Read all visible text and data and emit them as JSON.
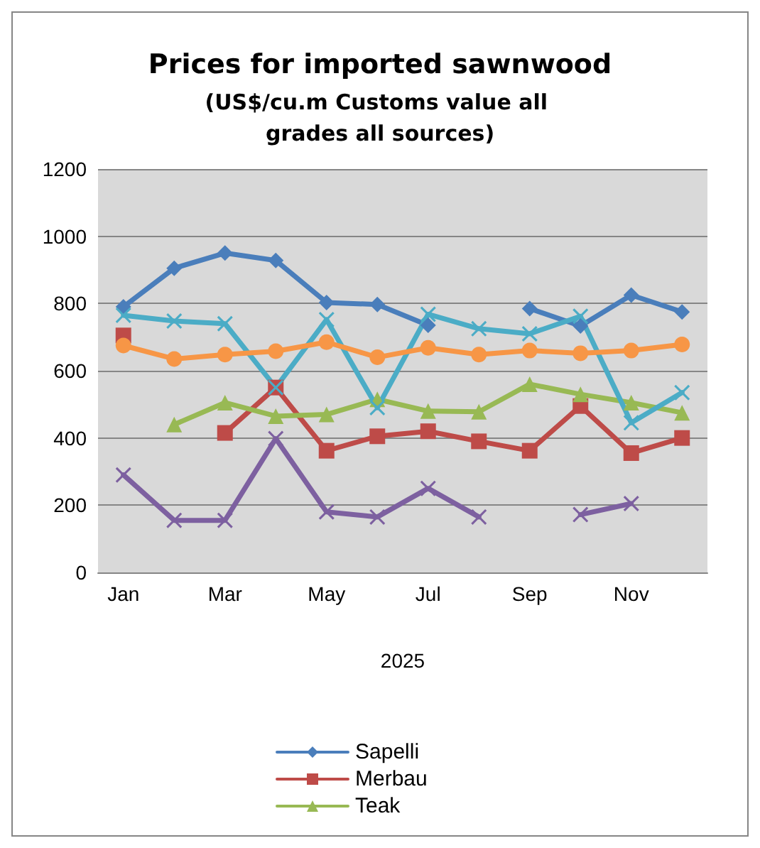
{
  "chart_data": {
    "type": "line",
    "title": "Prices for imported sawnwood",
    "subtitle": "(US$/cu.m Customs value all grades all sources)",
    "xlabel": "2025",
    "categories": [
      "Jan",
      null,
      "Mar",
      null,
      "May",
      null,
      "Jul",
      null,
      "Sep",
      null,
      "Nov",
      null
    ],
    "series": [
      {
        "name": "Sapelli",
        "color": "#4a7ebb",
        "marker": "diamond",
        "values": [
          790,
          905,
          950,
          928,
          803,
          797,
          735,
          null,
          785,
          733,
          825,
          775
        ]
      },
      {
        "name": "Merbau",
        "color": "#be4b48",
        "marker": "square",
        "values": [
          705,
          null,
          415,
          550,
          362,
          405,
          420,
          390,
          362,
          495,
          355,
          400
        ]
      },
      {
        "name": "Teak",
        "color": "#98b954",
        "marker": "triangle",
        "values": [
          null,
          440,
          505,
          465,
          470,
          515,
          480,
          478,
          560,
          530,
          505,
          475
        ]
      },
      {
        "color": "#4bacc6",
        "marker": "cross",
        "values": [
          765,
          748,
          740,
          550,
          752,
          490,
          768,
          725,
          710,
          762,
          445,
          535
        ]
      },
      {
        "color": "#f79646",
        "marker": "circle",
        "values": [
          675,
          635,
          648,
          658,
          685,
          640,
          668,
          648,
          660,
          652,
          660,
          678
        ]
      },
      {
        "color": "#7d60a0",
        "marker": "cross",
        "values": [
          290,
          155,
          155,
          398,
          180,
          165,
          250,
          165,
          null,
          172,
          205,
          null
        ]
      }
    ],
    "ylim": [
      0,
      1200
    ],
    "yticks": [
      0,
      200,
      400,
      600,
      800,
      1000,
      1200
    ],
    "grid": "y",
    "legend": "bottom",
    "line_style": "solid"
  }
}
